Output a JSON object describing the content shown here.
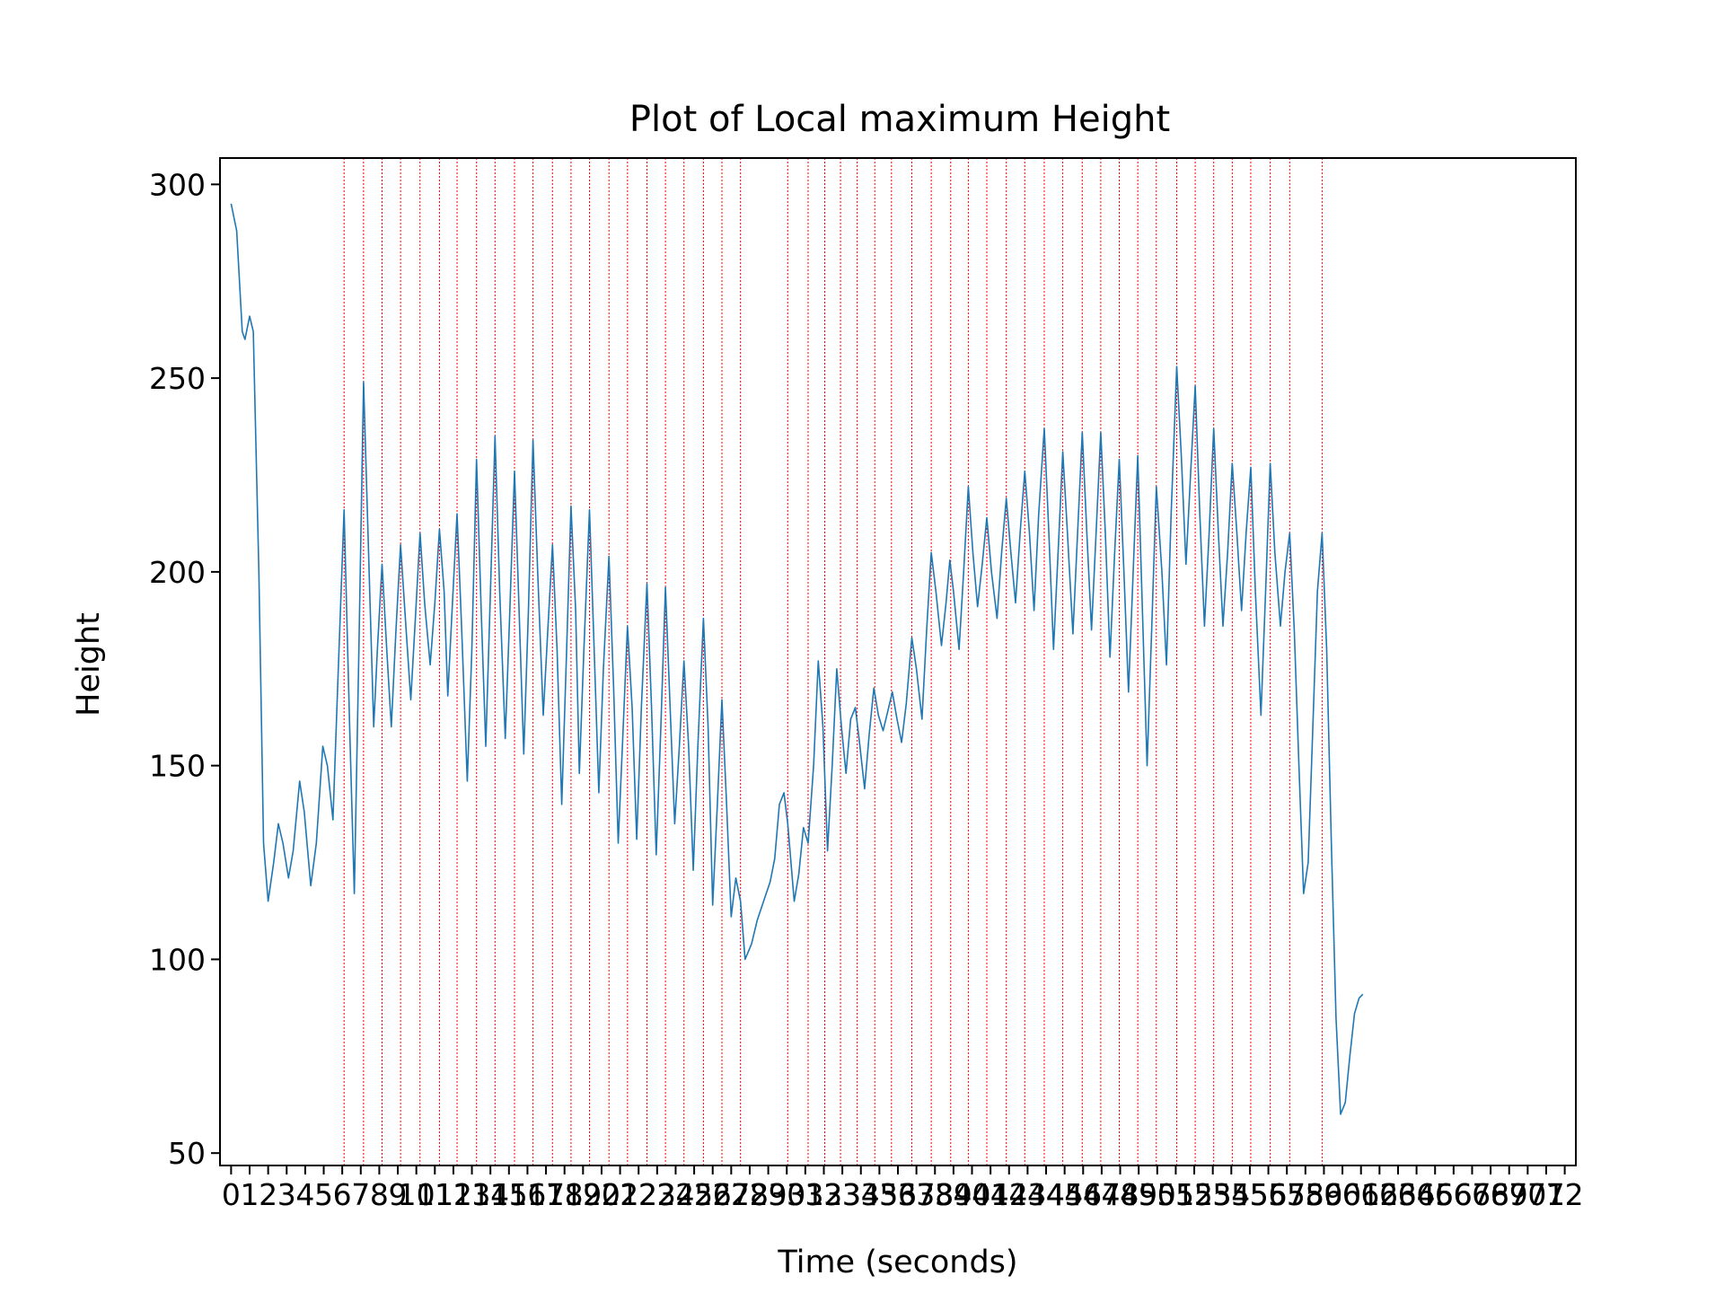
{
  "chart_data": {
    "type": "line",
    "title": "Plot of Local maximum Height",
    "xlabel": "Time (seconds)",
    "ylabel": "Height",
    "xlim": [
      -0.6,
      72.6
    ],
    "ylim": [
      46.8,
      306.8
    ],
    "x_ticks": [
      0,
      1,
      2,
      3,
      4,
      5,
      6,
      7,
      8,
      9,
      10,
      11,
      12,
      13,
      14,
      15,
      16,
      17,
      18,
      19,
      20,
      21,
      22,
      23,
      24,
      25,
      26,
      27,
      28,
      29,
      30,
      31,
      32,
      33,
      34,
      35,
      36,
      37,
      38,
      39,
      40,
      41,
      42,
      43,
      44,
      45,
      46,
      47,
      48,
      49,
      50,
      51,
      52,
      53,
      54,
      55,
      56,
      57,
      58,
      59,
      60,
      61,
      62,
      63,
      64,
      65,
      66,
      67,
      68,
      69,
      70,
      71,
      72
    ],
    "x_tick_labels": [
      "0",
      "1",
      "2",
      "3",
      "4",
      "5",
      "6",
      "7",
      "8",
      "9",
      "10",
      "11",
      "12",
      "13",
      "14",
      "15",
      "16",
      "17",
      "18",
      "19",
      "20",
      "21",
      "22",
      "23",
      "24",
      "25",
      "26",
      "27",
      "28",
      "29",
      "30",
      "31",
      "32",
      "33",
      "34",
      "35",
      "36",
      "37",
      "38",
      "39",
      "40",
      "41",
      "42",
      "43",
      "44",
      "45",
      "46",
      "47",
      "48",
      "49",
      "50",
      "51",
      "52",
      "53",
      "54",
      "55",
      "56",
      "57",
      "58",
      "59",
      "60",
      "61",
      "62",
      "63",
      "64",
      "65",
      "66",
      "67",
      "68",
      "69",
      "70",
      "71",
      "72"
    ],
    "y_ticks": [
      50,
      100,
      150,
      200,
      250,
      300
    ],
    "y_tick_labels": [
      "50",
      "100",
      "150",
      "200",
      "250",
      "300"
    ],
    "series": [
      {
        "color": "#1f77b4",
        "points": [
          [
            0.0,
            295
          ],
          [
            0.3,
            288
          ],
          [
            0.6,
            262
          ],
          [
            0.75,
            260
          ],
          [
            1.0,
            266
          ],
          [
            1.2,
            262
          ],
          [
            1.5,
            200
          ],
          [
            1.75,
            130
          ],
          [
            2.0,
            115
          ],
          [
            2.3,
            125
          ],
          [
            2.55,
            135
          ],
          [
            2.8,
            130
          ],
          [
            3.1,
            121
          ],
          [
            3.35,
            128
          ],
          [
            3.7,
            146
          ],
          [
            3.95,
            138
          ],
          [
            4.3,
            119
          ],
          [
            4.6,
            130
          ],
          [
            4.95,
            155
          ],
          [
            5.2,
            150
          ],
          [
            5.5,
            136
          ],
          [
            5.75,
            170
          ],
          [
            6.1,
            216
          ],
          [
            6.4,
            160
          ],
          [
            6.65,
            117
          ],
          [
            6.9,
            180
          ],
          [
            7.15,
            249
          ],
          [
            7.45,
            200
          ],
          [
            7.7,
            160
          ],
          [
            7.9,
            180
          ],
          [
            8.15,
            202
          ],
          [
            8.4,
            180
          ],
          [
            8.65,
            160
          ],
          [
            8.9,
            185
          ],
          [
            9.15,
            207
          ],
          [
            9.45,
            185
          ],
          [
            9.7,
            167
          ],
          [
            9.95,
            188
          ],
          [
            10.2,
            210
          ],
          [
            10.45,
            192
          ],
          [
            10.75,
            176
          ],
          [
            11.0,
            192
          ],
          [
            11.25,
            211
          ],
          [
            11.5,
            195
          ],
          [
            11.7,
            168
          ],
          [
            11.95,
            192
          ],
          [
            12.2,
            215
          ],
          [
            12.45,
            185
          ],
          [
            12.75,
            146
          ],
          [
            13.0,
            180
          ],
          [
            13.25,
            229
          ],
          [
            13.5,
            190
          ],
          [
            13.75,
            155
          ],
          [
            14.0,
            195
          ],
          [
            14.25,
            235
          ],
          [
            14.5,
            195
          ],
          [
            14.8,
            157
          ],
          [
            15.05,
            190
          ],
          [
            15.3,
            226
          ],
          [
            15.55,
            190
          ],
          [
            15.8,
            153
          ],
          [
            16.05,
            190
          ],
          [
            16.3,
            234
          ],
          [
            16.55,
            200
          ],
          [
            16.85,
            163
          ],
          [
            17.1,
            185
          ],
          [
            17.35,
            207
          ],
          [
            17.6,
            180
          ],
          [
            17.85,
            140
          ],
          [
            18.1,
            178
          ],
          [
            18.35,
            217
          ],
          [
            18.6,
            190
          ],
          [
            18.8,
            148
          ],
          [
            19.05,
            180
          ],
          [
            19.35,
            216
          ],
          [
            19.6,
            180
          ],
          [
            19.85,
            143
          ],
          [
            20.1,
            175
          ],
          [
            20.4,
            204
          ],
          [
            20.65,
            170
          ],
          [
            20.9,
            130
          ],
          [
            21.15,
            158
          ],
          [
            21.4,
            186
          ],
          [
            21.65,
            165
          ],
          [
            21.9,
            131
          ],
          [
            22.15,
            165
          ],
          [
            22.45,
            197
          ],
          [
            22.7,
            165
          ],
          [
            22.95,
            127
          ],
          [
            23.2,
            160
          ],
          [
            23.45,
            196
          ],
          [
            23.7,
            165
          ],
          [
            23.95,
            135
          ],
          [
            24.2,
            155
          ],
          [
            24.45,
            177
          ],
          [
            24.7,
            155
          ],
          [
            24.95,
            123
          ],
          [
            25.2,
            155
          ],
          [
            25.5,
            188
          ],
          [
            25.75,
            160
          ],
          [
            26.0,
            114
          ],
          [
            26.25,
            140
          ],
          [
            26.5,
            167
          ],
          [
            26.75,
            140
          ],
          [
            27.0,
            111
          ],
          [
            27.25,
            121
          ],
          [
            27.5,
            115
          ],
          [
            27.75,
            100
          ],
          [
            28.1,
            104
          ],
          [
            28.4,
            110
          ],
          [
            28.75,
            115
          ],
          [
            29.1,
            120
          ],
          [
            29.35,
            126
          ],
          [
            29.6,
            140
          ],
          [
            29.85,
            143
          ],
          [
            30.05,
            135
          ],
          [
            30.4,
            115
          ],
          [
            30.65,
            122
          ],
          [
            30.9,
            134
          ],
          [
            31.15,
            130
          ],
          [
            31.45,
            150
          ],
          [
            31.7,
            177
          ],
          [
            31.95,
            160
          ],
          [
            32.2,
            128
          ],
          [
            32.45,
            150
          ],
          [
            32.7,
            175
          ],
          [
            32.95,
            160
          ],
          [
            33.2,
            148
          ],
          [
            33.45,
            162
          ],
          [
            33.7,
            165
          ],
          [
            33.95,
            155
          ],
          [
            34.2,
            144
          ],
          [
            34.45,
            158
          ],
          [
            34.7,
            170
          ],
          [
            34.95,
            163
          ],
          [
            35.2,
            159
          ],
          [
            35.45,
            164
          ],
          [
            35.7,
            169
          ],
          [
            35.95,
            162
          ],
          [
            36.2,
            156
          ],
          [
            36.45,
            166
          ],
          [
            36.75,
            183
          ],
          [
            37.0,
            175
          ],
          [
            37.3,
            162
          ],
          [
            37.55,
            185
          ],
          [
            37.8,
            205
          ],
          [
            38.05,
            195
          ],
          [
            38.35,
            181
          ],
          [
            38.6,
            192
          ],
          [
            38.8,
            203
          ],
          [
            39.0,
            195
          ],
          [
            39.3,
            180
          ],
          [
            39.55,
            200
          ],
          [
            39.8,
            222
          ],
          [
            40.05,
            205
          ],
          [
            40.3,
            191
          ],
          [
            40.55,
            202
          ],
          [
            40.8,
            214
          ],
          [
            41.05,
            200
          ],
          [
            41.35,
            188
          ],
          [
            41.6,
            205
          ],
          [
            41.85,
            219
          ],
          [
            42.1,
            205
          ],
          [
            42.35,
            192
          ],
          [
            42.6,
            210
          ],
          [
            42.85,
            226
          ],
          [
            43.1,
            210
          ],
          [
            43.35,
            190
          ],
          [
            43.6,
            215
          ],
          [
            43.9,
            237
          ],
          [
            44.15,
            210
          ],
          [
            44.4,
            180
          ],
          [
            44.65,
            205
          ],
          [
            44.9,
            231
          ],
          [
            45.15,
            210
          ],
          [
            45.45,
            184
          ],
          [
            45.7,
            210
          ],
          [
            45.95,
            236
          ],
          [
            46.2,
            210
          ],
          [
            46.45,
            185
          ],
          [
            46.7,
            210
          ],
          [
            46.95,
            236
          ],
          [
            47.2,
            210
          ],
          [
            47.45,
            178
          ],
          [
            47.7,
            205
          ],
          [
            47.95,
            229
          ],
          [
            48.2,
            200
          ],
          [
            48.45,
            169
          ],
          [
            48.7,
            200
          ],
          [
            48.95,
            230
          ],
          [
            49.2,
            190
          ],
          [
            49.45,
            150
          ],
          [
            49.7,
            185
          ],
          [
            49.95,
            222
          ],
          [
            50.25,
            200
          ],
          [
            50.5,
            176
          ],
          [
            50.75,
            215
          ],
          [
            51.05,
            253
          ],
          [
            51.3,
            230
          ],
          [
            51.55,
            202
          ],
          [
            51.8,
            225
          ],
          [
            52.05,
            248
          ],
          [
            52.3,
            215
          ],
          [
            52.55,
            186
          ],
          [
            52.8,
            210
          ],
          [
            53.05,
            237
          ],
          [
            53.3,
            210
          ],
          [
            53.55,
            186
          ],
          [
            53.8,
            205
          ],
          [
            54.05,
            228
          ],
          [
            54.3,
            210
          ],
          [
            54.55,
            190
          ],
          [
            54.8,
            210
          ],
          [
            55.05,
            227
          ],
          [
            55.3,
            195
          ],
          [
            55.6,
            163
          ],
          [
            55.85,
            195
          ],
          [
            56.1,
            228
          ],
          [
            56.35,
            205
          ],
          [
            56.65,
            186
          ],
          [
            56.9,
            200
          ],
          [
            57.15,
            210
          ],
          [
            57.4,
            185
          ],
          [
            57.65,
            150
          ],
          [
            57.9,
            117
          ],
          [
            58.15,
            125
          ],
          [
            58.4,
            160
          ],
          [
            58.65,
            195
          ],
          [
            58.9,
            210
          ],
          [
            59.15,
            180
          ],
          [
            59.4,
            130
          ],
          [
            59.65,
            85
          ],
          [
            59.9,
            60
          ],
          [
            60.15,
            63
          ],
          [
            60.4,
            75
          ],
          [
            60.65,
            86
          ],
          [
            60.9,
            90
          ],
          [
            61.1,
            91
          ]
        ]
      }
    ],
    "vlines": {
      "color": "#ff0000",
      "style": "dotted",
      "x": [
        6.1,
        7.15,
        8.15,
        9.15,
        10.2,
        11.25,
        12.2,
        13.25,
        14.25,
        15.3,
        16.3,
        17.35,
        18.35,
        19.35,
        20.4,
        21.4,
        22.45,
        23.45,
        24.45,
        25.5,
        26.5,
        27.5,
        30.05,
        31.15,
        32.05,
        32.9,
        33.8,
        34.75,
        35.65,
        36.75,
        37.8,
        38.85,
        39.8,
        40.8,
        41.85,
        42.85,
        43.9,
        44.9,
        45.95,
        46.95,
        47.95,
        48.95,
        49.95,
        51.05,
        52.05,
        53.05,
        54.05,
        55.05,
        56.1,
        57.15,
        58.9
      ]
    },
    "grid": false,
    "legend": "none"
  }
}
